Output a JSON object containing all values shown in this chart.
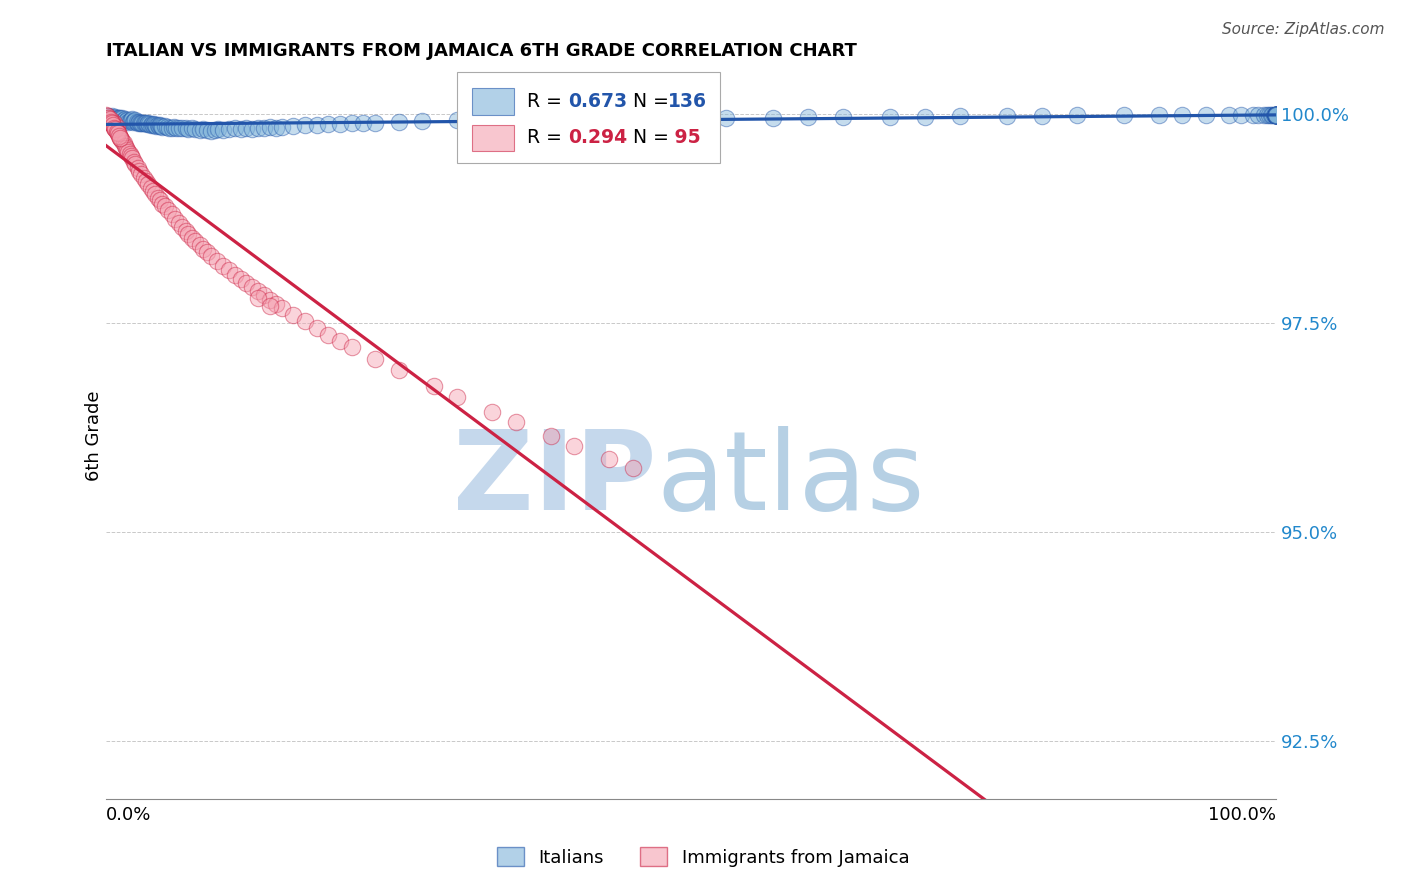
{
  "title": "ITALIAN VS IMMIGRANTS FROM JAMAICA 6TH GRADE CORRELATION CHART",
  "source": "Source: ZipAtlas.com",
  "ylabel": "6th Grade",
  "ytick_labels": [
    "92.5%",
    "95.0%",
    "97.5%",
    "100.0%"
  ],
  "ytick_values": [
    0.925,
    0.95,
    0.975,
    1.0
  ],
  "xmin": 0.0,
  "xmax": 1.0,
  "ymin": 0.918,
  "ymax": 1.005,
  "blue_R": 0.673,
  "blue_N": 136,
  "pink_R": 0.294,
  "pink_N": 95,
  "blue_color": "#7fb3d9",
  "pink_color": "#f4a0b0",
  "blue_line_color": "#2255aa",
  "pink_line_color": "#cc2244",
  "legend_label_blue": "Italians",
  "legend_label_pink": "Immigrants from Jamaica",
  "watermark_color_ZIP": "#c5d8ec",
  "watermark_color_atlas": "#aac8e0",
  "background_color": "#ffffff",
  "grid_color": "#bbbbbb",
  "blue_scatter_x": [
    0.002,
    0.003,
    0.004,
    0.005,
    0.006,
    0.007,
    0.008,
    0.009,
    0.01,
    0.011,
    0.012,
    0.013,
    0.014,
    0.015,
    0.016,
    0.017,
    0.018,
    0.019,
    0.02,
    0.021,
    0.022,
    0.023,
    0.024,
    0.025,
    0.026,
    0.027,
    0.028,
    0.029,
    0.03,
    0.031,
    0.032,
    0.033,
    0.034,
    0.035,
    0.036,
    0.037,
    0.038,
    0.039,
    0.04,
    0.041,
    0.042,
    0.043,
    0.044,
    0.045,
    0.046,
    0.047,
    0.048,
    0.05,
    0.052,
    0.054,
    0.056,
    0.058,
    0.06,
    0.062,
    0.065,
    0.068,
    0.07,
    0.073,
    0.076,
    0.08,
    0.083,
    0.086,
    0.09,
    0.093,
    0.096,
    0.1,
    0.105,
    0.11,
    0.115,
    0.12,
    0.125,
    0.13,
    0.135,
    0.14,
    0.145,
    0.15,
    0.16,
    0.17,
    0.18,
    0.19,
    0.2,
    0.21,
    0.22,
    0.23,
    0.25,
    0.27,
    0.3,
    0.33,
    0.36,
    0.4,
    0.43,
    0.47,
    0.5,
    0.53,
    0.57,
    0.6,
    0.63,
    0.67,
    0.7,
    0.73,
    0.77,
    0.8,
    0.83,
    0.87,
    0.9,
    0.92,
    0.94,
    0.96,
    0.97,
    0.98,
    0.985,
    0.99,
    0.992,
    0.994,
    0.996,
    0.997,
    0.998,
    0.999,
    0.9993,
    0.9995,
    0.9997,
    0.9998,
    0.9999,
    0.9999,
    0.9999,
    0.9999,
    0.9999,
    0.9999,
    0.9999,
    0.9999,
    0.9999,
    0.9999,
    0.9999,
    0.9999,
    0.9999,
    0.9999
  ],
  "blue_scatter_y": [
    0.9998,
    0.9997,
    0.9996,
    0.9998,
    0.9996,
    0.9995,
    0.9997,
    0.9994,
    0.9996,
    0.9995,
    0.9996,
    0.9994,
    0.9995,
    0.9993,
    0.9994,
    0.9992,
    0.9993,
    0.9991,
    0.9992,
    0.9993,
    0.9994,
    0.9991,
    0.9992,
    0.9993,
    0.9991,
    0.999,
    0.9991,
    0.999,
    0.9989,
    0.999,
    0.9989,
    0.999,
    0.9989,
    0.9988,
    0.9989,
    0.9988,
    0.9987,
    0.9988,
    0.9987,
    0.9988,
    0.9987,
    0.9986,
    0.9987,
    0.9986,
    0.9987,
    0.9986,
    0.9985,
    0.9986,
    0.9985,
    0.9984,
    0.9984,
    0.9985,
    0.9984,
    0.9983,
    0.9984,
    0.9983,
    0.9982,
    0.9983,
    0.9982,
    0.9981,
    0.9982,
    0.9981,
    0.998,
    0.9981,
    0.9982,
    0.9981,
    0.9982,
    0.9983,
    0.9982,
    0.9983,
    0.9982,
    0.9983,
    0.9984,
    0.9985,
    0.9984,
    0.9985,
    0.9986,
    0.9987,
    0.9987,
    0.9988,
    0.9988,
    0.9989,
    0.999,
    0.9989,
    0.9991,
    0.9992,
    0.9993,
    0.9993,
    0.9994,
    0.9994,
    0.9995,
    0.9995,
    0.9995,
    0.9996,
    0.9996,
    0.9997,
    0.9997,
    0.9997,
    0.9997,
    0.9998,
    0.9998,
    0.9998,
    0.9999,
    0.9999,
    0.9999,
    0.9999,
    0.9999,
    0.9999,
    0.9999,
    0.9999,
    0.9999,
    0.9999,
    0.9999,
    0.9999,
    0.9999,
    0.9999,
    0.9999,
    0.9999,
    0.9999,
    0.9999,
    0.9999,
    0.9999,
    0.9999,
    0.9999,
    0.9999,
    0.9999,
    0.9999,
    0.9999,
    0.9999,
    0.9999,
    0.9999,
    0.9999,
    0.9999,
    0.9999,
    0.9999,
    0.9999
  ],
  "pink_scatter_x": [
    0.002,
    0.003,
    0.004,
    0.005,
    0.005,
    0.006,
    0.007,
    0.007,
    0.008,
    0.009,
    0.009,
    0.01,
    0.011,
    0.012,
    0.013,
    0.014,
    0.015,
    0.016,
    0.017,
    0.018,
    0.019,
    0.02,
    0.021,
    0.022,
    0.024,
    0.025,
    0.027,
    0.028,
    0.03,
    0.032,
    0.034,
    0.036,
    0.038,
    0.04,
    0.042,
    0.044,
    0.046,
    0.048,
    0.05,
    0.053,
    0.056,
    0.059,
    0.062,
    0.065,
    0.068,
    0.07,
    0.073,
    0.076,
    0.08,
    0.083,
    0.086,
    0.09,
    0.095,
    0.1,
    0.105,
    0.11,
    0.115,
    0.12,
    0.125,
    0.13,
    0.135,
    0.14,
    0.145,
    0.15,
    0.16,
    0.17,
    0.18,
    0.19,
    0.2,
    0.21,
    0.23,
    0.25,
    0.28,
    0.3,
    0.33,
    0.35,
    0.38,
    0.4,
    0.43,
    0.45,
    0.0,
    0.001,
    0.002,
    0.003,
    0.004,
    0.005,
    0.006,
    0.007,
    0.008,
    0.009,
    0.01,
    0.011,
    0.012,
    0.13,
    0.14
  ],
  "pink_scatter_y": [
    0.9995,
    0.9993,
    0.999,
    0.9988,
    0.9992,
    0.9987,
    0.9985,
    0.999,
    0.9982,
    0.9985,
    0.998,
    0.9978,
    0.9975,
    0.9972,
    0.997,
    0.9968,
    0.9965,
    0.9962,
    0.996,
    0.9957,
    0.9955,
    0.9952,
    0.995,
    0.9948,
    0.9943,
    0.994,
    0.9935,
    0.9932,
    0.9928,
    0.9924,
    0.992,
    0.9916,
    0.9912,
    0.9908,
    0.9904,
    0.99,
    0.9897,
    0.9893,
    0.989,
    0.9885,
    0.988,
    0.9875,
    0.987,
    0.9865,
    0.986,
    0.9857,
    0.9852,
    0.9848,
    0.9843,
    0.9839,
    0.9835,
    0.983,
    0.9824,
    0.9818,
    0.9813,
    0.9808,
    0.9803,
    0.9798,
    0.9793,
    0.9788,
    0.9783,
    0.9778,
    0.9773,
    0.9768,
    0.976,
    0.9752,
    0.9744,
    0.9736,
    0.9728,
    0.9721,
    0.9707,
    0.9694,
    0.9675,
    0.9662,
    0.9644,
    0.9632,
    0.9615,
    0.9603,
    0.9587,
    0.9576,
    0.9999,
    0.9998,
    0.9996,
    0.9994,
    0.9991,
    0.9989,
    0.9987,
    0.9984,
    0.9982,
    0.9979,
    0.9977,
    0.9974,
    0.9972,
    0.978,
    0.977
  ]
}
